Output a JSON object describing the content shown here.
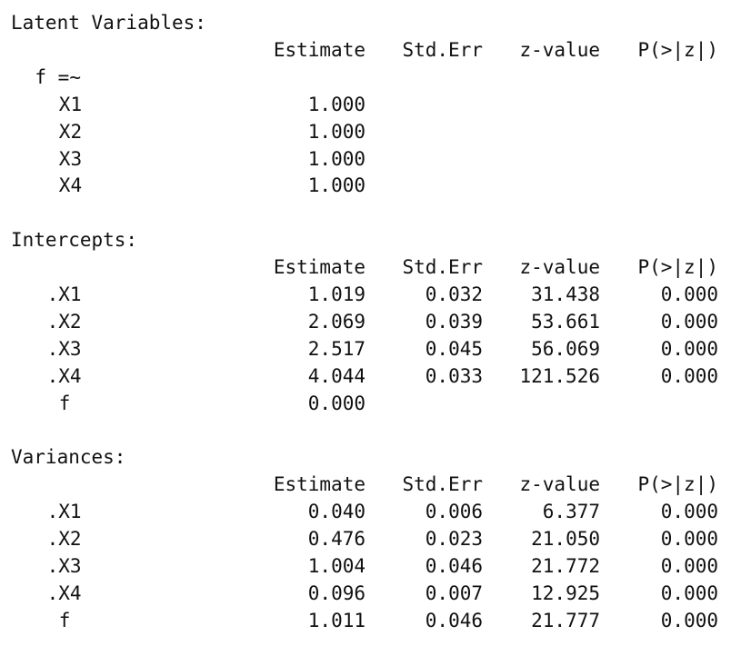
{
  "sections": [
    {
      "title": "Latent Variables:",
      "columns": [
        "Estimate",
        "Std.Err",
        "z-value",
        "P(>|z|)"
      ],
      "groups": [
        {
          "label": "f =~",
          "rows": [
            {
              "label": "X1",
              "values": [
                "1.000"
              ]
            },
            {
              "label": "X2",
              "values": [
                "1.000"
              ]
            },
            {
              "label": "X3",
              "values": [
                "1.000"
              ]
            },
            {
              "label": "X4",
              "values": [
                "1.000"
              ]
            }
          ]
        }
      ]
    },
    {
      "title": "Intercepts:",
      "columns": [
        "Estimate",
        "Std.Err",
        "z-value",
        "P(>|z|)"
      ],
      "rows": [
        {
          "label": ".X1",
          "values": [
            "1.019",
            "0.032",
            "31.438",
            "0.000"
          ]
        },
        {
          "label": ".X2",
          "values": [
            "2.069",
            "0.039",
            "53.661",
            "0.000"
          ]
        },
        {
          "label": ".X3",
          "values": [
            "2.517",
            "0.045",
            "56.069",
            "0.000"
          ]
        },
        {
          "label": ".X4",
          "values": [
            "4.044",
            "0.033",
            "121.526",
            "0.000"
          ]
        },
        {
          "label": "f",
          "values": [
            "0.000"
          ]
        }
      ]
    },
    {
      "title": "Variances:",
      "columns": [
        "Estimate",
        "Std.Err",
        "z-value",
        "P(>|z|)"
      ],
      "rows": [
        {
          "label": ".X1",
          "values": [
            "0.040",
            "0.006",
            "6.377",
            "0.000"
          ]
        },
        {
          "label": ".X2",
          "values": [
            "0.476",
            "0.023",
            "21.050",
            "0.000"
          ]
        },
        {
          "label": ".X3",
          "values": [
            "1.004",
            "0.046",
            "21.772",
            "0.000"
          ]
        },
        {
          "label": ".X4",
          "values": [
            "0.096",
            "0.007",
            "12.925",
            "0.000"
          ]
        },
        {
          "label": "f",
          "values": [
            "1.011",
            "0.046",
            "21.777",
            "0.000"
          ]
        }
      ]
    }
  ]
}
